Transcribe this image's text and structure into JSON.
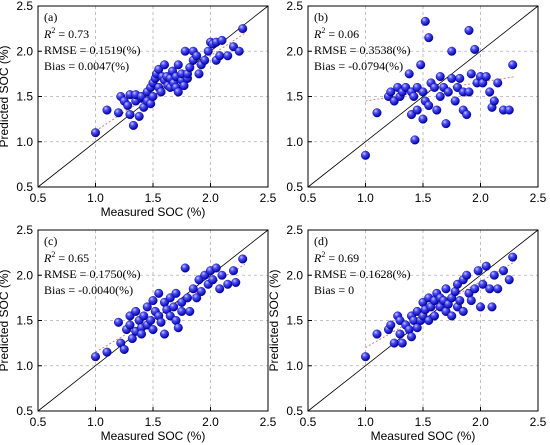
{
  "chart_data": [
    {
      "type": "scatter",
      "panel_label": "(a)",
      "stats": {
        "r2_label": "R",
        "r2_sup": "2",
        "r2_value": " = 0.73",
        "rmse": "RMSE = 0.1519(%)",
        "bias": "Bias = 0.0047(%)"
      },
      "xlabel": "Measured SOC (%)",
      "ylabel": "Predicted SOC (%)",
      "xlim": [
        0.5,
        2.5
      ],
      "ylim": [
        0.5,
        2.5
      ],
      "xticks": [
        "0.5",
        "1.0",
        "1.5",
        "2.0",
        "2.5"
      ],
      "yticks": [
        "0.5",
        "1.0",
        "1.5",
        "2.0",
        "2.5"
      ],
      "grid": true,
      "reference_line": "1:1",
      "fit_line": {
        "x": [
          1.0,
          2.3
        ],
        "y": [
          1.12,
          2.2
        ]
      },
      "points": [
        [
          1.0,
          1.1
        ],
        [
          1.1,
          1.35
        ],
        [
          1.2,
          1.32
        ],
        [
          1.22,
          1.5
        ],
        [
          1.25,
          1.45
        ],
        [
          1.28,
          1.4
        ],
        [
          1.3,
          1.3
        ],
        [
          1.3,
          1.52
        ],
        [
          1.33,
          1.18
        ],
        [
          1.35,
          1.45
        ],
        [
          1.35,
          1.52
        ],
        [
          1.38,
          1.28
        ],
        [
          1.4,
          1.48
        ],
        [
          1.4,
          1.5
        ],
        [
          1.42,
          1.38
        ],
        [
          1.45,
          1.45
        ],
        [
          1.45,
          1.55
        ],
        [
          1.48,
          1.42
        ],
        [
          1.48,
          1.6
        ],
        [
          1.5,
          1.5
        ],
        [
          1.5,
          1.65
        ],
        [
          1.52,
          1.7
        ],
        [
          1.53,
          1.75
        ],
        [
          1.55,
          1.8
        ],
        [
          1.55,
          1.6
        ],
        [
          1.57,
          1.55
        ],
        [
          1.58,
          1.72
        ],
        [
          1.6,
          1.68
        ],
        [
          1.6,
          1.85
        ],
        [
          1.62,
          1.72
        ],
        [
          1.63,
          1.62
        ],
        [
          1.65,
          1.6
        ],
        [
          1.65,
          1.7
        ],
        [
          1.67,
          1.78
        ],
        [
          1.68,
          1.65
        ],
        [
          1.7,
          1.6
        ],
        [
          1.7,
          1.72
        ],
        [
          1.72,
          1.55
        ],
        [
          1.72,
          1.85
        ],
        [
          1.75,
          1.68
        ],
        [
          1.75,
          1.75
        ],
        [
          1.77,
          1.62
        ],
        [
          1.78,
          2.0
        ],
        [
          1.8,
          1.7
        ],
        [
          1.8,
          1.75
        ],
        [
          1.82,
          1.82
        ],
        [
          1.85,
          1.9
        ],
        [
          1.85,
          2.0
        ],
        [
          1.88,
          1.95
        ],
        [
          1.9,
          1.75
        ],
        [
          1.92,
          1.85
        ],
        [
          1.95,
          1.9
        ],
        [
          1.98,
          2.0
        ],
        [
          2.0,
          2.1
        ],
        [
          2.02,
          2.08
        ],
        [
          2.05,
          1.9
        ],
        [
          2.05,
          2.1
        ],
        [
          2.08,
          1.95
        ],
        [
          2.1,
          2.12
        ],
        [
          2.15,
          1.95
        ],
        [
          2.2,
          2.05
        ],
        [
          2.25,
          2.0
        ],
        [
          2.28,
          2.25
        ]
      ]
    },
    {
      "type": "scatter",
      "panel_label": "(b)",
      "stats": {
        "r2_label": "R",
        "r2_sup": "2",
        "r2_value": " = 0.06",
        "rmse": "RMSE = 0.3538(%)",
        "bias": "Bias = -0.0794(%)"
      },
      "xlabel": "",
      "ylabel": "",
      "xlim": [
        0.5,
        2.5
      ],
      "ylim": [
        0.5,
        2.5
      ],
      "xticks": [
        "0.5",
        "1.0",
        "1.5",
        "2.0",
        "2.5"
      ],
      "yticks": [
        "0.5",
        "1.0",
        "1.5",
        "2.0",
        "2.5"
      ],
      "grid": true,
      "reference_line": "1:1",
      "fit_line": {
        "x": [
          1.0,
          2.3
        ],
        "y": [
          1.45,
          1.72
        ]
      },
      "points": [
        [
          1.0,
          0.85
        ],
        [
          1.1,
          1.32
        ],
        [
          1.2,
          1.5
        ],
        [
          1.22,
          1.55
        ],
        [
          1.25,
          1.45
        ],
        [
          1.28,
          1.6
        ],
        [
          1.3,
          1.5
        ],
        [
          1.32,
          1.55
        ],
        [
          1.35,
          1.6
        ],
        [
          1.38,
          1.75
        ],
        [
          1.4,
          1.3
        ],
        [
          1.4,
          1.55
        ],
        [
          1.42,
          1.5
        ],
        [
          1.43,
          1.02
        ],
        [
          1.45,
          1.35
        ],
        [
          1.45,
          1.6
        ],
        [
          1.48,
          1.85
        ],
        [
          1.5,
          1.25
        ],
        [
          1.5,
          1.55
        ],
        [
          1.52,
          2.33
        ],
        [
          1.52,
          1.45
        ],
        [
          1.55,
          2.15
        ],
        [
          1.55,
          1.4
        ],
        [
          1.57,
          1.65
        ],
        [
          1.6,
          1.6
        ],
        [
          1.62,
          1.35
        ],
        [
          1.65,
          1.72
        ],
        [
          1.65,
          1.5
        ],
        [
          1.68,
          1.6
        ],
        [
          1.7,
          1.2
        ],
        [
          1.72,
          1.55
        ],
        [
          1.75,
          1.7
        ],
        [
          1.75,
          2.0
        ],
        [
          1.78,
          1.45
        ],
        [
          1.8,
          1.6
        ],
        [
          1.82,
          1.7
        ],
        [
          1.85,
          1.55
        ],
        [
          1.85,
          1.35
        ],
        [
          1.88,
          1.3
        ],
        [
          1.9,
          2.23
        ],
        [
          1.9,
          1.55
        ],
        [
          1.92,
          1.75
        ],
        [
          1.95,
          2.02
        ],
        [
          1.97,
          1.65
        ],
        [
          2.0,
          1.72
        ],
        [
          2.02,
          1.65
        ],
        [
          2.05,
          1.72
        ],
        [
          2.08,
          1.55
        ],
        [
          2.1,
          1.38
        ],
        [
          2.12,
          1.45
        ],
        [
          2.15,
          1.65
        ],
        [
          2.2,
          1.35
        ],
        [
          2.25,
          1.35
        ],
        [
          2.28,
          1.85
        ]
      ]
    },
    {
      "type": "scatter",
      "panel_label": "(c)",
      "stats": {
        "r2_label": "R",
        "r2_sup": "2",
        "r2_value": " = 0.65",
        "rmse": "RMSE = 0.1750(%)",
        "bias": "Bias = -0.0040(%)"
      },
      "xlabel": "Measured SOC (%)",
      "ylabel": "Predicted SOC (%)",
      "xlim": [
        0.5,
        2.5
      ],
      "ylim": [
        0.5,
        2.5
      ],
      "xticks": [
        "0.5",
        "1.0",
        "1.5",
        "2.0",
        "2.5"
      ],
      "yticks": [
        "0.5",
        "1.0",
        "1.5",
        "2.0",
        "2.5"
      ],
      "grid": true,
      "reference_line": "1:1",
      "fit_line": {
        "x": [
          1.0,
          2.3
        ],
        "y": [
          1.15,
          2.12
        ]
      },
      "points": [
        [
          1.0,
          1.1
        ],
        [
          1.1,
          1.15
        ],
        [
          1.2,
          1.48
        ],
        [
          1.22,
          1.25
        ],
        [
          1.25,
          1.18
        ],
        [
          1.27,
          1.4
        ],
        [
          1.3,
          1.55
        ],
        [
          1.3,
          1.45
        ],
        [
          1.32,
          1.3
        ],
        [
          1.35,
          1.6
        ],
        [
          1.35,
          1.38
        ],
        [
          1.38,
          1.5
        ],
        [
          1.4,
          1.42
        ],
        [
          1.4,
          1.35
        ],
        [
          1.42,
          1.55
        ],
        [
          1.45,
          1.65
        ],
        [
          1.45,
          1.45
        ],
        [
          1.48,
          1.5
        ],
        [
          1.5,
          1.72
        ],
        [
          1.5,
          1.4
        ],
        [
          1.52,
          1.6
        ],
        [
          1.55,
          1.8
        ],
        [
          1.55,
          1.55
        ],
        [
          1.57,
          1.48
        ],
        [
          1.6,
          1.7
        ],
        [
          1.6,
          1.35
        ],
        [
          1.62,
          1.62
        ],
        [
          1.65,
          1.75
        ],
        [
          1.65,
          1.55
        ],
        [
          1.68,
          1.65
        ],
        [
          1.7,
          1.5
        ],
        [
          1.7,
          1.8
        ],
        [
          1.72,
          1.42
        ],
        [
          1.75,
          1.7
        ],
        [
          1.75,
          1.6
        ],
        [
          1.78,
          2.08
        ],
        [
          1.8,
          1.75
        ],
        [
          1.82,
          1.6
        ],
        [
          1.85,
          1.85
        ],
        [
          1.88,
          1.75
        ],
        [
          1.9,
          1.95
        ],
        [
          1.92,
          1.82
        ],
        [
          1.95,
          2.0
        ],
        [
          1.98,
          1.9
        ],
        [
          2.0,
          2.05
        ],
        [
          2.02,
          1.95
        ],
        [
          2.05,
          2.08
        ],
        [
          2.08,
          1.85
        ],
        [
          2.1,
          2.0
        ],
        [
          2.15,
          1.9
        ],
        [
          2.2,
          2.05
        ],
        [
          2.22,
          1.92
        ],
        [
          2.28,
          2.18
        ]
      ]
    },
    {
      "type": "scatter",
      "panel_label": "(d)",
      "stats": {
        "r2_label": "R",
        "r2_sup": "2",
        "r2_value": " = 0.69",
        "rmse": "RMSE = 0.1628(%)",
        "bias": "Bias = 0"
      },
      "xlabel": "Measured SOC (%)",
      "ylabel": "Predicted SOC (%)",
      "xlim": [
        0.5,
        2.5
      ],
      "ylim": [
        0.5,
        2.5
      ],
      "xticks": [
        "0.5",
        "1.0",
        "1.5",
        "2.0",
        "2.5"
      ],
      "yticks": [
        "0.5",
        "1.0",
        "1.5",
        "2.0",
        "2.5"
      ],
      "grid": true,
      "reference_line": "1:1",
      "fit_line": {
        "x": [
          1.0,
          2.3
        ],
        "y": [
          1.2,
          2.15
        ]
      },
      "points": [
        [
          1.0,
          1.1
        ],
        [
          1.1,
          1.35
        ],
        [
          1.2,
          1.4
        ],
        [
          1.22,
          1.45
        ],
        [
          1.25,
          1.25
        ],
        [
          1.28,
          1.55
        ],
        [
          1.3,
          1.35
        ],
        [
          1.3,
          1.5
        ],
        [
          1.32,
          1.25
        ],
        [
          1.35,
          1.45
        ],
        [
          1.38,
          1.4
        ],
        [
          1.4,
          1.55
        ],
        [
          1.4,
          1.32
        ],
        [
          1.42,
          1.5
        ],
        [
          1.45,
          1.6
        ],
        [
          1.45,
          1.42
        ],
        [
          1.48,
          1.5
        ],
        [
          1.5,
          1.55
        ],
        [
          1.5,
          1.7
        ],
        [
          1.52,
          1.62
        ],
        [
          1.55,
          1.75
        ],
        [
          1.55,
          1.5
        ],
        [
          1.57,
          1.65
        ],
        [
          1.6,
          1.72
        ],
        [
          1.6,
          1.55
        ],
        [
          1.62,
          1.8
        ],
        [
          1.65,
          1.65
        ],
        [
          1.65,
          1.75
        ],
        [
          1.68,
          1.72
        ],
        [
          1.7,
          1.85
        ],
        [
          1.7,
          1.6
        ],
        [
          1.72,
          1.68
        ],
        [
          1.75,
          1.75
        ],
        [
          1.75,
          1.55
        ],
        [
          1.78,
          1.82
        ],
        [
          1.8,
          1.65
        ],
        [
          1.8,
          1.9
        ],
        [
          1.82,
          1.72
        ],
        [
          1.85,
          1.95
        ],
        [
          1.85,
          1.6
        ],
        [
          1.88,
          2.0
        ],
        [
          1.9,
          1.8
        ],
        [
          1.92,
          1.72
        ],
        [
          1.95,
          1.85
        ],
        [
          1.98,
          2.05
        ],
        [
          2.0,
          1.65
        ],
        [
          2.02,
          1.9
        ],
        [
          2.05,
          2.1
        ],
        [
          2.08,
          1.85
        ],
        [
          2.1,
          1.65
        ],
        [
          2.12,
          2.0
        ],
        [
          2.15,
          1.85
        ],
        [
          2.2,
          2.05
        ],
        [
          2.25,
          1.95
        ],
        [
          2.28,
          2.2
        ]
      ]
    }
  ],
  "colors": {
    "marker": "#1a1ae6",
    "marker_highlight": "#9ea0ff",
    "marker_edge": "#00008b",
    "reference_line": "#000000",
    "fit_line": "#e07070",
    "grid": "#b0b0b0"
  }
}
